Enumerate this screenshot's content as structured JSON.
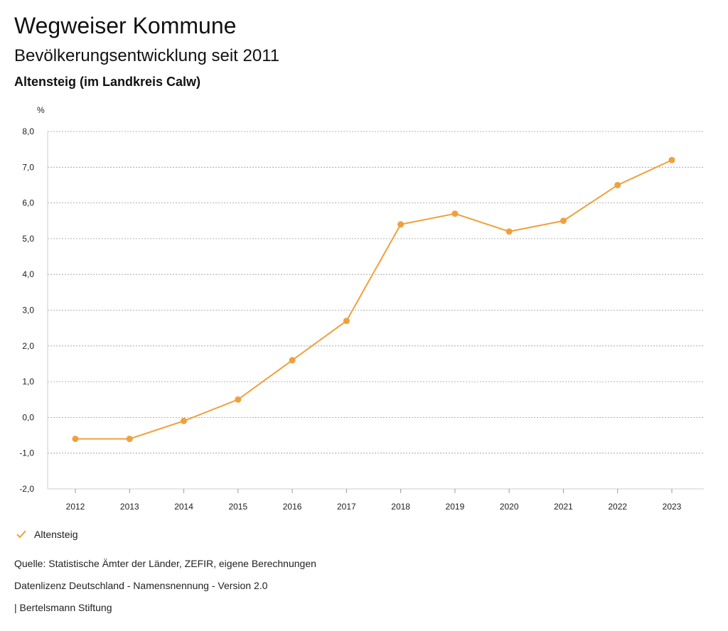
{
  "header": {
    "title": "Wegweiser Kommune",
    "subtitle": "Bevölkerungsentwicklung seit 2011",
    "region": "Altensteig (im Landkreis Calw)"
  },
  "legend": {
    "label": "Altensteig",
    "icon": "check-icon"
  },
  "footer": {
    "source": "Quelle: Statistische Ämter der Länder, ZEFIR, eigene Berechnungen",
    "license": "Datenlizenz Deutschland - Namensnennung - Version 2.0",
    "publisher": "| Bertelsmann Stiftung"
  },
  "colors": {
    "series": "#f0a03c",
    "grid": "#9a9a9a"
  },
  "chart_data": {
    "type": "line",
    "title": "Bevölkerungsentwicklung seit 2011",
    "xlabel": "",
    "ylabel": "%",
    "categories": [
      "2012",
      "2013",
      "2014",
      "2015",
      "2016",
      "2017",
      "2018",
      "2019",
      "2020",
      "2021",
      "2022",
      "2023"
    ],
    "series": [
      {
        "name": "Altensteig",
        "values": [
          -0.6,
          -0.6,
          -0.1,
          0.5,
          1.6,
          2.7,
          5.4,
          5.7,
          5.2,
          5.5,
          6.5,
          7.2
        ]
      }
    ],
    "ylim": [
      -2,
      8
    ],
    "yticks": [
      "-2,0",
      "-1,0",
      "0,0",
      "1,0",
      "2,0",
      "3,0",
      "4,0",
      "5,0",
      "6,0",
      "7,0",
      "8,0"
    ],
    "grid": true,
    "legend_position": "bottom-left"
  }
}
